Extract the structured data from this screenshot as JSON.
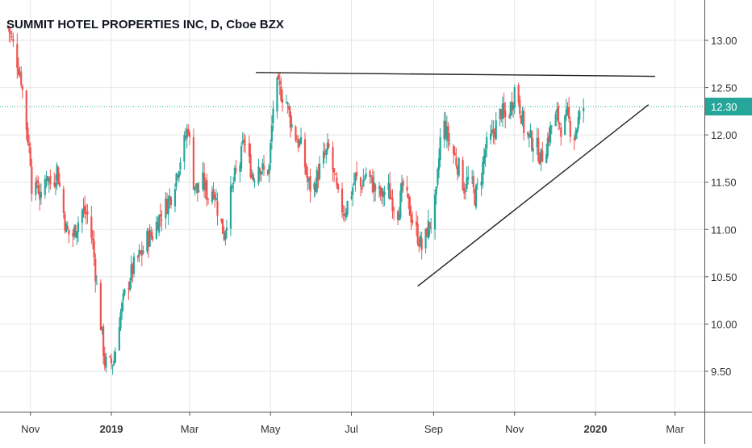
{
  "chart_data": {
    "type": "candlestick",
    "title": "SUMMIT HOTEL PROPERTIES INC, D, Cboe BZX",
    "x_ticks": [
      {
        "label": "Nov",
        "bold": false,
        "date": "2018-11-01"
      },
      {
        "label": "2019",
        "bold": true,
        "date": "2019-01-01"
      },
      {
        "label": "Mar",
        "bold": false,
        "date": "2019-03-01"
      },
      {
        "label": "May",
        "bold": false,
        "date": "2019-05-01"
      },
      {
        "label": "Jul",
        "bold": false,
        "date": "2019-07-01"
      },
      {
        "label": "Sep",
        "bold": false,
        "date": "2019-09-01"
      },
      {
        "label": "Nov",
        "bold": false,
        "date": "2019-11-01"
      },
      {
        "label": "2020",
        "bold": true,
        "date": "2020-01-01"
      },
      {
        "label": "Mar",
        "bold": false,
        "date": "2020-03-01"
      }
    ],
    "y_ticks": [
      "9.50",
      "10.00",
      "10.50",
      "11.00",
      "11.50",
      "12.00",
      "12.50",
      "13.00"
    ],
    "ylim": [
      9.02,
      13.22
    ],
    "last_price": "12.30",
    "colors": {
      "up": "#26a69a",
      "down": "#ef5350",
      "axis": "#555555",
      "grid": "#e6e6e6",
      "trendline": "#222222",
      "price_label": "#26a69a"
    },
    "price_path": [
      [
        "2018-10-15",
        13.15
      ],
      [
        "2018-10-20",
        12.9
      ],
      [
        "2018-10-25",
        12.6
      ],
      [
        "2018-10-28",
        12.2
      ],
      [
        "2018-11-01",
        11.75
      ],
      [
        "2018-11-03",
        11.2
      ],
      [
        "2018-11-06",
        11.5
      ],
      [
        "2018-11-09",
        11.3
      ],
      [
        "2018-11-13",
        11.6
      ],
      [
        "2018-11-17",
        11.45
      ],
      [
        "2018-11-21",
        11.65
      ],
      [
        "2018-11-24",
        11.35
      ],
      [
        "2018-11-28",
        11.0
      ],
      [
        "2018-12-02",
        10.9
      ],
      [
        "2018-12-06",
        11.05
      ],
      [
        "2018-12-10",
        11.2
      ],
      [
        "2018-12-14",
        11.15
      ],
      [
        "2018-12-18",
        10.85
      ],
      [
        "2018-12-21",
        10.4
      ],
      [
        "2018-12-24",
        10.0
      ],
      [
        "2018-12-27",
        9.6
      ],
      [
        "2018-12-30",
        9.55
      ],
      [
        "2019-01-03",
        9.62
      ],
      [
        "2019-01-07",
        10.05
      ],
      [
        "2019-01-11",
        10.3
      ],
      [
        "2019-01-15",
        10.5
      ],
      [
        "2019-01-19",
        10.65
      ],
      [
        "2019-01-24",
        10.75
      ],
      [
        "2019-01-28",
        10.9
      ],
      [
        "2019-02-01",
        10.95
      ],
      [
        "2019-02-05",
        11.1
      ],
      [
        "2019-02-09",
        11.2
      ],
      [
        "2019-02-13",
        11.3
      ],
      [
        "2019-02-16",
        11.4
      ],
      [
        "2019-02-20",
        11.65
      ],
      [
        "2019-02-24",
        11.85
      ],
      [
        "2019-02-28",
        12.1
      ],
      [
        "2019-03-03",
        11.55
      ],
      [
        "2019-03-07",
        11.4
      ],
      [
        "2019-03-11",
        11.5
      ],
      [
        "2019-03-15",
        11.35
      ],
      [
        "2019-03-19",
        11.45
      ],
      [
        "2019-03-23",
        11.15
      ],
      [
        "2019-03-27",
        10.95
      ],
      [
        "2019-03-31",
        11.3
      ],
      [
        "2019-04-04",
        11.55
      ],
      [
        "2019-04-08",
        11.7
      ],
      [
        "2019-04-11",
        11.95
      ],
      [
        "2019-04-14",
        11.75
      ],
      [
        "2019-04-18",
        11.55
      ],
      [
        "2019-04-22",
        11.7
      ],
      [
        "2019-04-26",
        11.6
      ],
      [
        "2019-04-30",
        11.65
      ],
      [
        "2019-05-03",
        12.3
      ],
      [
        "2019-05-06",
        12.5
      ],
      [
        "2019-05-09",
        12.45
      ],
      [
        "2019-05-13",
        12.35
      ],
      [
        "2019-05-17",
        12.1
      ],
      [
        "2019-05-21",
        11.95
      ],
      [
        "2019-05-25",
        11.85
      ],
      [
        "2019-05-29",
        11.5
      ],
      [
        "2019-06-02",
        11.4
      ],
      [
        "2019-06-06",
        11.6
      ],
      [
        "2019-06-10",
        11.75
      ],
      [
        "2019-06-14",
        11.85
      ],
      [
        "2019-06-18",
        11.55
      ],
      [
        "2019-06-22",
        11.25
      ],
      [
        "2019-06-26",
        11.2
      ],
      [
        "2019-06-30",
        11.35
      ],
      [
        "2019-07-04",
        11.55
      ],
      [
        "2019-07-08",
        11.45
      ],
      [
        "2019-07-12",
        11.6
      ],
      [
        "2019-07-16",
        11.5
      ],
      [
        "2019-07-20",
        11.4
      ],
      [
        "2019-07-24",
        11.35
      ],
      [
        "2019-07-28",
        11.45
      ],
      [
        "2019-08-01",
        11.3
      ],
      [
        "2019-08-05",
        11.2
      ],
      [
        "2019-08-09",
        11.45
      ],
      [
        "2019-08-13",
        11.25
      ],
      [
        "2019-08-17",
        11.05
      ],
      [
        "2019-08-21",
        10.9
      ],
      [
        "2019-08-24",
        10.75
      ],
      [
        "2019-08-27",
        11.0
      ],
      [
        "2019-08-31",
        11.1
      ],
      [
        "2019-09-03",
        11.35
      ],
      [
        "2019-09-06",
        11.95
      ],
      [
        "2019-09-09",
        12.1
      ],
      [
        "2019-09-12",
        11.95
      ],
      [
        "2019-09-16",
        11.8
      ],
      [
        "2019-09-20",
        11.65
      ],
      [
        "2019-09-24",
        11.45
      ],
      [
        "2019-09-28",
        11.55
      ],
      [
        "2019-10-02",
        11.35
      ],
      [
        "2019-10-06",
        11.5
      ],
      [
        "2019-10-10",
        11.85
      ],
      [
        "2019-10-14",
        11.95
      ],
      [
        "2019-10-18",
        12.1
      ],
      [
        "2019-10-22",
        12.25
      ],
      [
        "2019-10-26",
        12.15
      ],
      [
        "2019-10-30",
        12.35
      ],
      [
        "2019-11-02",
        12.55
      ],
      [
        "2019-11-05",
        12.3
      ],
      [
        "2019-11-09",
        12.0
      ],
      [
        "2019-11-13",
        11.95
      ],
      [
        "2019-11-17",
        11.9
      ],
      [
        "2019-11-21",
        11.75
      ],
      [
        "2019-11-25",
        11.9
      ],
      [
        "2019-11-29",
        12.1
      ],
      [
        "2019-12-03",
        12.2
      ],
      [
        "2019-12-07",
        12.05
      ],
      [
        "2019-12-11",
        12.2
      ],
      [
        "2019-12-15",
        11.95
      ],
      [
        "2019-12-19",
        12.15
      ],
      [
        "2019-12-23",
        12.3
      ]
    ],
    "trendlines": [
      {
        "name": "resistance",
        "from": [
          "2019-04-20",
          12.66
        ],
        "to": [
          "2020-02-15",
          12.62
        ]
      },
      {
        "name": "support",
        "from": [
          "2019-08-20",
          10.4
        ],
        "to": [
          "2020-02-10",
          12.32
        ]
      }
    ]
  }
}
